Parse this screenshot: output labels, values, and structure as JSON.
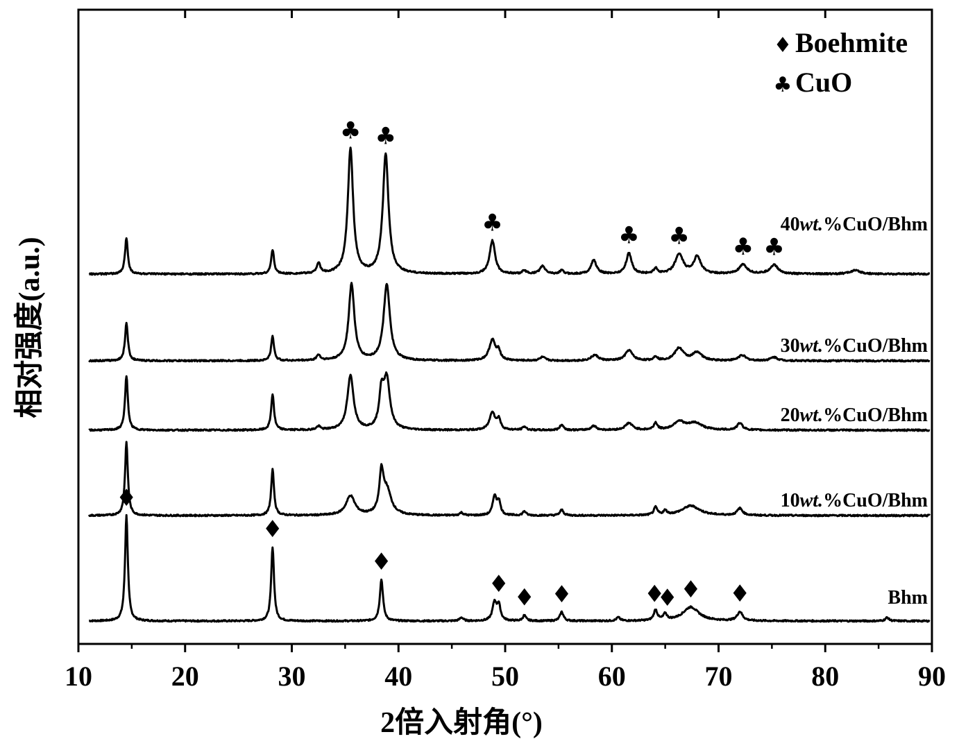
{
  "chart_data": {
    "type": "line",
    "xlabel": "2倍入射角(°)",
    "ylabel": "相对强度(a.u.)",
    "xlim": [
      10,
      90
    ],
    "x_ticks": [
      10,
      20,
      30,
      40,
      50,
      60,
      70,
      80,
      90
    ],
    "y_ticks_shown": false,
    "grid": false,
    "legend": {
      "placement": "top-right",
      "entries": [
        {
          "symbol": "♦",
          "label": "Boehmite"
        },
        {
          "symbol": "♣",
          "label": "CuO"
        }
      ]
    },
    "peak_positions": {
      "Boehmite": [
        14.5,
        28.2,
        38.4,
        49.4,
        51.8,
        55.3,
        64.0,
        65.2,
        67.4,
        72.0
      ],
      "CuO": [
        35.5,
        38.8,
        48.8,
        61.6,
        66.3,
        72.3,
        75.2
      ]
    },
    "series": [
      {
        "name": "Bhm",
        "label_parts": [
          "Bhm"
        ],
        "baseline": 0,
        "peaks": [
          [
            14.5,
            152,
            0.16
          ],
          [
            28.2,
            107,
            0.16
          ],
          [
            38.4,
            60,
            0.18
          ],
          [
            45.9,
            5,
            0.2
          ],
          [
            49.0,
            26,
            0.22
          ],
          [
            49.4,
            22,
            0.2
          ],
          [
            51.8,
            8,
            0.18
          ],
          [
            55.3,
            13,
            0.2
          ],
          [
            60.6,
            5,
            0.2
          ],
          [
            64.1,
            15,
            0.2
          ],
          [
            65.0,
            9,
            0.2
          ],
          [
            67.4,
            20,
            0.9
          ],
          [
            72.0,
            13,
            0.3
          ],
          [
            85.8,
            5,
            0.2
          ]
        ],
        "markers": [
          {
            "x": 14.5,
            "symbol": "♦"
          },
          {
            "x": 28.2,
            "symbol": "♦"
          },
          {
            "x": 38.4,
            "symbol": "♦"
          },
          {
            "x": 49.4,
            "symbol": "♦"
          },
          {
            "x": 51.8,
            "symbol": "♦"
          },
          {
            "x": 55.3,
            "symbol": "♦"
          },
          {
            "x": 64.0,
            "symbol": "♦"
          },
          {
            "x": 65.2,
            "symbol": "♦"
          },
          {
            "x": 67.4,
            "symbol": "♦"
          },
          {
            "x": 72.0,
            "symbol": "♦"
          }
        ]
      },
      {
        "name": "10wt.%CuO/Bhm",
        "label_parts": [
          "10",
          "wt.",
          "%CuO/Bhm"
        ],
        "baseline": 1,
        "peaks": [
          [
            14.5,
            105,
            0.16
          ],
          [
            28.2,
            66,
            0.16
          ],
          [
            35.5,
            28,
            0.5
          ],
          [
            38.4,
            55,
            0.22
          ],
          [
            38.9,
            36,
            0.5
          ],
          [
            45.9,
            4,
            0.2
          ],
          [
            49.0,
            27,
            0.2
          ],
          [
            49.4,
            20,
            0.2
          ],
          [
            51.8,
            6,
            0.18
          ],
          [
            55.3,
            8,
            0.2
          ],
          [
            64.1,
            11,
            0.2
          ],
          [
            65.0,
            6,
            0.2
          ],
          [
            67.4,
            14,
            1.0
          ],
          [
            72.0,
            10,
            0.3
          ]
        ],
        "markers": []
      },
      {
        "name": "20wt.%CuO/Bhm",
        "label_parts": [
          "20",
          "wt.",
          "%CuO/Bhm"
        ],
        "baseline": 2,
        "peaks": [
          [
            14.5,
            78,
            0.16
          ],
          [
            28.2,
            52,
            0.16
          ],
          [
            32.5,
            5,
            0.2
          ],
          [
            35.5,
            78,
            0.35
          ],
          [
            38.4,
            48,
            0.25
          ],
          [
            38.9,
            72,
            0.35
          ],
          [
            48.8,
            26,
            0.3
          ],
          [
            49.4,
            15,
            0.2
          ],
          [
            51.8,
            5,
            0.2
          ],
          [
            55.3,
            8,
            0.2
          ],
          [
            58.3,
            6,
            0.3
          ],
          [
            61.6,
            10,
            0.4
          ],
          [
            64.1,
            10,
            0.2
          ],
          [
            66.3,
            12,
            0.6
          ],
          [
            67.8,
            10,
            0.8
          ],
          [
            72.0,
            10,
            0.3
          ]
        ],
        "markers": []
      },
      {
        "name": "30wt.%CuO/Bhm",
        "label_parts": [
          "30",
          "wt.",
          "%CuO/Bhm"
        ],
        "baseline": 3,
        "peaks": [
          [
            14.5,
            55,
            0.16
          ],
          [
            28.2,
            35,
            0.16
          ],
          [
            32.5,
            8,
            0.2
          ],
          [
            35.6,
            110,
            0.32
          ],
          [
            38.9,
            110,
            0.35
          ],
          [
            48.8,
            30,
            0.35
          ],
          [
            49.4,
            12,
            0.2
          ],
          [
            53.5,
            5,
            0.3
          ],
          [
            58.4,
            8,
            0.4
          ],
          [
            61.6,
            15,
            0.4
          ],
          [
            64.1,
            6,
            0.2
          ],
          [
            66.3,
            18,
            0.5
          ],
          [
            68.0,
            12,
            0.5
          ],
          [
            72.2,
            8,
            0.4
          ],
          [
            75.2,
            5,
            0.4
          ]
        ],
        "markers": []
      },
      {
        "name": "40wt.%CuO/Bhm",
        "label_parts": [
          "40",
          "wt.",
          "%CuO/Bhm"
        ],
        "baseline": 4,
        "peaks": [
          [
            14.5,
            52,
            0.16
          ],
          [
            28.2,
            35,
            0.16
          ],
          [
            32.5,
            15,
            0.2
          ],
          [
            35.5,
            180,
            0.3
          ],
          [
            38.8,
            172,
            0.32
          ],
          [
            48.8,
            48,
            0.3
          ],
          [
            51.8,
            5,
            0.2
          ],
          [
            53.5,
            11,
            0.3
          ],
          [
            55.3,
            5,
            0.2
          ],
          [
            58.3,
            20,
            0.3
          ],
          [
            61.6,
            30,
            0.3
          ],
          [
            64.1,
            8,
            0.2
          ],
          [
            66.3,
            28,
            0.45
          ],
          [
            68.0,
            25,
            0.4
          ],
          [
            72.3,
            13,
            0.45
          ],
          [
            75.2,
            13,
            0.45
          ],
          [
            82.8,
            5,
            0.6
          ]
        ],
        "markers": [
          {
            "x": 35.5,
            "symbol": "♣"
          },
          {
            "x": 38.8,
            "symbol": "♣"
          },
          {
            "x": 48.8,
            "symbol": "♣"
          },
          {
            "x": 61.6,
            "symbol": "♣"
          },
          {
            "x": 66.3,
            "symbol": "♣"
          },
          {
            "x": 72.3,
            "symbol": "♣"
          },
          {
            "x": 75.2,
            "symbol": "♣"
          }
        ]
      }
    ]
  }
}
